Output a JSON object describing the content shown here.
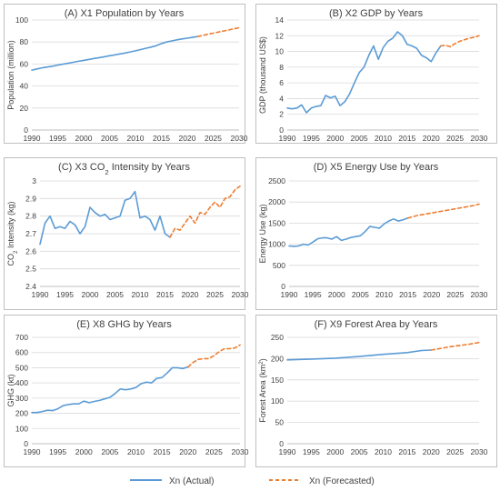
{
  "legend": {
    "actual_label": "Xn (Actual)",
    "forecast_label": "Xn (Forecasted)",
    "actual_color": "#5b9bd5",
    "forecast_color": "#ed7d31"
  },
  "chart_data": [
    {
      "type": "line",
      "title": "(A) X1 Population by Years",
      "xlabel": "",
      "ylabel": "Population (million)",
      "xlim": [
        1990,
        2030
      ],
      "ylim": [
        0,
        100
      ],
      "xticks": [
        "1990",
        "1995",
        "2000",
        "2005",
        "2010",
        "2015",
        "2020",
        "2025",
        "2030"
      ],
      "yticks": [
        "0",
        "20",
        "40",
        "60",
        "80",
        "100"
      ],
      "grid": true,
      "series": [
        {
          "name": "Xn (Actual)",
          "style": "solid",
          "color": "#5b9bd5",
          "x": [
            1990,
            1991,
            1992,
            1993,
            1994,
            1995,
            1996,
            1997,
            1998,
            1999,
            2000,
            2001,
            2002,
            2003,
            2004,
            2005,
            2006,
            2007,
            2008,
            2009,
            2010,
            2011,
            2012,
            2013,
            2014,
            2015,
            2016,
            2017,
            2018,
            2019,
            2020,
            2021,
            2022
          ],
          "y": [
            54.5,
            55.5,
            56.5,
            57.3,
            58,
            59,
            59.8,
            60.7,
            61.6,
            62.5,
            63.3,
            64.1,
            65,
            65.8,
            66.6,
            67.5,
            68.3,
            69.2,
            70,
            71,
            72,
            73.1,
            74.3,
            75.4,
            76.6,
            78.5,
            80,
            81,
            82,
            82.8,
            83.5,
            84.2,
            85
          ]
        },
        {
          "name": "Xn (Forecasted)",
          "style": "dashed",
          "color": "#ed7d31",
          "x": [
            2022,
            2023,
            2024,
            2025,
            2026,
            2027,
            2028,
            2029,
            2030
          ],
          "y": [
            85,
            86,
            87,
            88,
            89,
            90,
            91,
            92,
            93
          ]
        }
      ]
    },
    {
      "type": "line",
      "title": "(B) X2 GDP by Years",
      "xlabel": "",
      "ylabel": "GDP (thousand US$)",
      "xlim": [
        1990,
        2030
      ],
      "ylim": [
        0,
        14
      ],
      "xticks": [
        "1990",
        "1995",
        "2000",
        "2005",
        "2010",
        "2015",
        "2020",
        "2025",
        "2030"
      ],
      "yticks": [
        "0",
        "2",
        "4",
        "6",
        "8",
        "10",
        "12",
        "14"
      ],
      "grid": true,
      "series": [
        {
          "name": "Xn (Actual)",
          "style": "solid",
          "color": "#5b9bd5",
          "x": [
            1990,
            1991,
            1992,
            1993,
            1994,
            1995,
            1996,
            1997,
            1998,
            1999,
            2000,
            2001,
            2002,
            2003,
            2004,
            2005,
            2006,
            2007,
            2008,
            2009,
            2010,
            2011,
            2012,
            2013,
            2014,
            2015,
            2016,
            2017,
            2018,
            2019,
            2020,
            2021,
            2022
          ],
          "y": [
            2.8,
            2.7,
            2.8,
            3.2,
            2.2,
            2.8,
            3,
            3.1,
            4.4,
            4.1,
            4.3,
            3.1,
            3.6,
            4.6,
            6,
            7.3,
            8,
            9.5,
            10.7,
            9,
            10.5,
            11.3,
            11.7,
            12.5,
            12,
            10.9,
            10.7,
            10.4,
            9.5,
            9.2,
            8.7,
            9.8,
            10.7
          ]
        },
        {
          "name": "Xn (Forecasted)",
          "style": "dashed",
          "color": "#ed7d31",
          "x": [
            2022,
            2023,
            2024,
            2025,
            2026,
            2027,
            2028,
            2029,
            2030
          ],
          "y": [
            10.7,
            10.8,
            10.6,
            11,
            11.3,
            11.5,
            11.7,
            11.8,
            12
          ]
        }
      ]
    },
    {
      "type": "line",
      "title": "(C) X3 CO2 Intensity by Years",
      "xlabel": "",
      "ylabel": "CO2 Intensity (kg)",
      "xlim": [
        1990,
        2030
      ],
      "ylim": [
        2.4,
        3
      ],
      "xticks": [
        "1990",
        "1995",
        "2000",
        "2005",
        "2010",
        "2015",
        "2020",
        "2025",
        "2030"
      ],
      "yticks": [
        "2.4",
        "2.5",
        "2.6",
        "2.7",
        "2.8",
        "2.9",
        "3"
      ],
      "grid": true,
      "series": [
        {
          "name": "Xn (Actual)",
          "style": "solid",
          "color": "#5b9bd5",
          "x": [
            1990,
            1991,
            1992,
            1993,
            1994,
            1995,
            1996,
            1997,
            1998,
            1999,
            2000,
            2001,
            2002,
            2003,
            2004,
            2005,
            2006,
            2007,
            2008,
            2009,
            2010,
            2011,
            2012,
            2013,
            2014,
            2015,
            2016
          ],
          "y": [
            2.64,
            2.76,
            2.8,
            2.73,
            2.74,
            2.73,
            2.77,
            2.75,
            2.7,
            2.74,
            2.85,
            2.82,
            2.8,
            2.81,
            2.78,
            2.79,
            2.8,
            2.89,
            2.9,
            2.94,
            2.79,
            2.8,
            2.78,
            2.72,
            2.8,
            2.7,
            2.68
          ]
        },
        {
          "name": "Xn (Forecasted)",
          "style": "dashed",
          "color": "#ed7d31",
          "x": [
            2016,
            2017,
            2018,
            2019,
            2020,
            2021,
            2022,
            2023,
            2024,
            2025,
            2026,
            2027,
            2028,
            2029,
            2030
          ],
          "y": [
            2.68,
            2.73,
            2.72,
            2.76,
            2.8,
            2.76,
            2.82,
            2.81,
            2.85,
            2.88,
            2.85,
            2.9,
            2.91,
            2.95,
            2.97
          ]
        }
      ]
    },
    {
      "type": "line",
      "title": "(D) X5 Energy Use by Years",
      "xlabel": "",
      "ylabel": "Energy Use (kg)",
      "xlim": [
        1990,
        2030
      ],
      "ylim": [
        0,
        2500
      ],
      "xticks": [
        "1990",
        "1995",
        "2000",
        "2005",
        "2010",
        "2015",
        "2020",
        "2025",
        "2030"
      ],
      "yticks": [
        "0",
        "500",
        "1000",
        "1500",
        "2000",
        "2500"
      ],
      "grid": true,
      "series": [
        {
          "name": "Xn (Actual)",
          "style": "solid",
          "color": "#5b9bd5",
          "x": [
            1990,
            1991,
            1992,
            1993,
            1994,
            1995,
            1996,
            1997,
            1998,
            1999,
            2000,
            2001,
            2002,
            2003,
            2004,
            2005,
            2006,
            2007,
            2008,
            2009,
            2010,
            2011,
            2012,
            2013,
            2014,
            2015
          ],
          "y": [
            960,
            950,
            960,
            1000,
            980,
            1050,
            1130,
            1150,
            1150,
            1120,
            1180,
            1090,
            1120,
            1160,
            1180,
            1200,
            1300,
            1420,
            1400,
            1380,
            1480,
            1550,
            1600,
            1550,
            1580,
            1620
          ]
        },
        {
          "name": "Xn (Forecasted)",
          "style": "dashed",
          "color": "#ed7d31",
          "x": [
            2015,
            2017,
            2019,
            2021,
            2023,
            2025,
            2027,
            2029,
            2030
          ],
          "y": [
            1620,
            1680,
            1720,
            1760,
            1800,
            1840,
            1880,
            1920,
            1950
          ]
        }
      ]
    },
    {
      "type": "line",
      "title": "(E) X8 GHG by Years",
      "xlabel": "",
      "ylabel": "GHG (kt)",
      "xlim": [
        1990,
        2030
      ],
      "ylim": [
        0,
        700
      ],
      "xticks": [
        "1990",
        "1995",
        "2000",
        "2005",
        "2010",
        "2015",
        "2020",
        "2025",
        "2030"
      ],
      "yticks": [
        "0",
        "100",
        "200",
        "300",
        "400",
        "500",
        "600",
        "700"
      ],
      "grid": true,
      "series": [
        {
          "name": "Xn (Actual)",
          "style": "solid",
          "color": "#5b9bd5",
          "x": [
            1990,
            1991,
            1992,
            1993,
            1994,
            1995,
            1996,
            1997,
            1998,
            1999,
            2000,
            2001,
            2002,
            2003,
            2004,
            2005,
            2006,
            2007,
            2008,
            2009,
            2010,
            2011,
            2012,
            2013,
            2014,
            2015,
            2016,
            2017,
            2018,
            2019,
            2020
          ],
          "y": [
            205,
            205,
            212,
            220,
            218,
            230,
            250,
            258,
            262,
            262,
            280,
            270,
            278,
            285,
            295,
            305,
            330,
            360,
            355,
            360,
            370,
            395,
            405,
            400,
            430,
            435,
            465,
            500,
            500,
            495,
            505
          ]
        },
        {
          "name": "Xn (Forecasted)",
          "style": "dashed",
          "color": "#ed7d31",
          "x": [
            2020,
            2021,
            2022,
            2023,
            2024,
            2025,
            2026,
            2027,
            2028,
            2029,
            2030
          ],
          "y": [
            505,
            535,
            555,
            560,
            560,
            580,
            605,
            625,
            625,
            630,
            650
          ]
        }
      ]
    },
    {
      "type": "line",
      "title": "(F) X9 Forest Area by Years",
      "xlabel": "",
      "ylabel": "Forest Area (km2)",
      "xlim": [
        1990,
        2030
      ],
      "ylim": [
        0,
        250
      ],
      "xticks": [
        "1990",
        "1995",
        "2000",
        "2005",
        "2010",
        "2015",
        "2020",
        "2025",
        "2030"
      ],
      "yticks": [
        "0",
        "50",
        "100",
        "150",
        "200",
        "250"
      ],
      "grid": true,
      "series": [
        {
          "name": "Xn (Actual)",
          "style": "solid",
          "color": "#5b9bd5",
          "x": [
            1990,
            1995,
            2000,
            2005,
            2010,
            2015,
            2018,
            2020
          ],
          "y": [
            197,
            199,
            201,
            205,
            210,
            214,
            219,
            220
          ]
        },
        {
          "name": "Xn (Forecasted)",
          "style": "dashed",
          "color": "#ed7d31",
          "x": [
            2020,
            2022,
            2024,
            2026,
            2028,
            2030
          ],
          "y": [
            220,
            224,
            228,
            231,
            234,
            238
          ]
        }
      ]
    }
  ]
}
